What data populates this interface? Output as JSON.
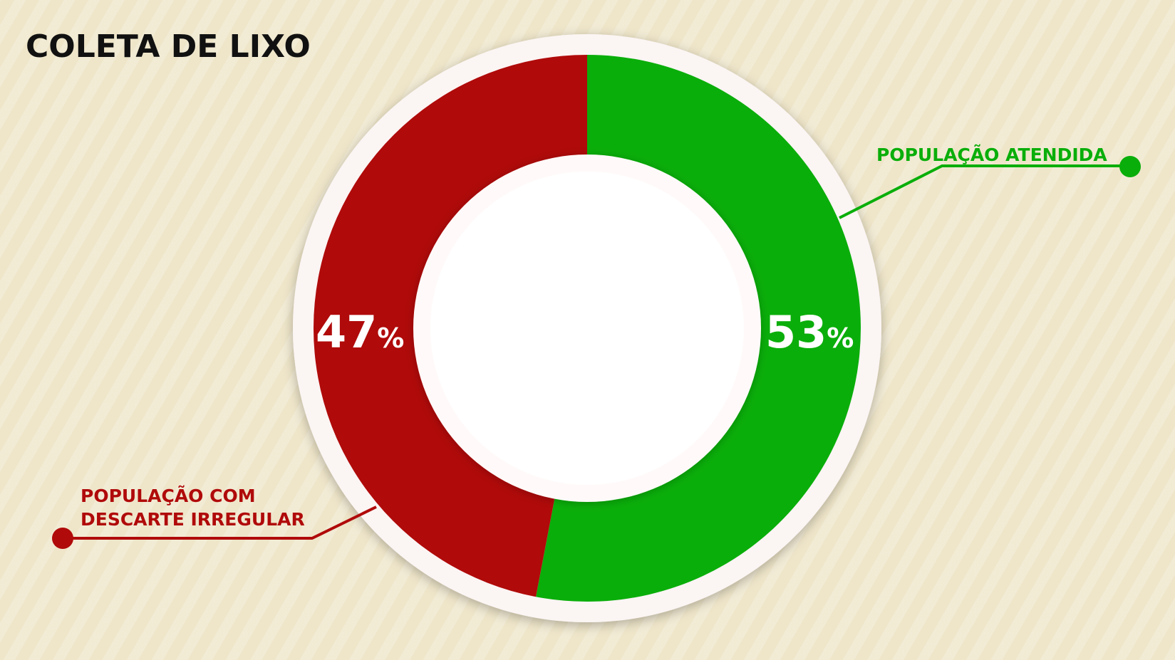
{
  "title": "COLETA DE LIXO",
  "colors": {
    "attended": "#0aae0a",
    "irregular": "#b00a0a",
    "title": "#111111"
  },
  "chart_data": {
    "type": "pie",
    "title": "COLETA DE LIXO",
    "slices": [
      {
        "label": "POPULAÇÃO ATENDIDA",
        "value": 53,
        "display": "53",
        "unit": "%",
        "color": "#0aae0a"
      },
      {
        "label": "POPULAÇÃO COM DESCARTE IRREGULAR",
        "label_lines": [
          "POPULAÇÃO COM",
          "DESCARTE IRREGULAR"
        ],
        "value": 47,
        "display": "47",
        "unit": "%",
        "color": "#b00a0a"
      }
    ]
  }
}
